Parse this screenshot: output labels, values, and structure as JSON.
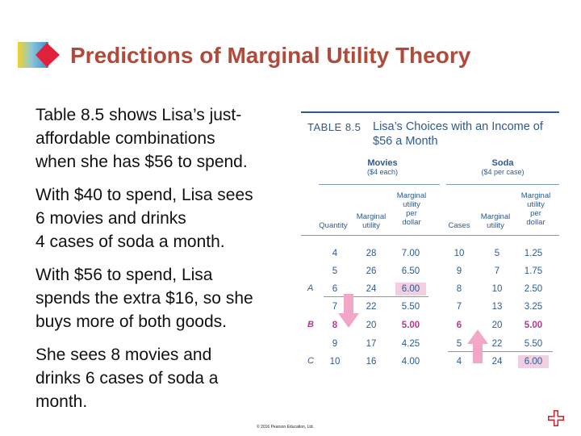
{
  "slide": {
    "title": "Predictions of Marginal Utility Theory",
    "bullets": [
      "Table 8.5 shows Lisa’s just-\naffordable combinations\nwhen she has $56 to spend.",
      "With $40 to spend, Lisa sees\n6 movies and drinks\n4 cases of soda a month.",
      "With $56 to spend, Lisa\nspends the extra $16, so she\nbuys more of both goods.",
      "She sees 8 movies and\ndrinks 6 cases of soda a\nmonth."
    ],
    "copyright": "© 2016 Pearson Education, Ltd.",
    "logo_icon": "diamond-logo-icon",
    "corner_icon": "plus-cross-icon",
    "colors": {
      "title": "#b04a3a",
      "table_text": "#2f5a8e",
      "highlight": "#f1cfe0",
      "accent": "#b23a8e",
      "arrow": "#f2a7c8"
    }
  },
  "table": {
    "number": "TABLE 8.5",
    "caption": "Lisa’s Choices with an Income of $56 a Month",
    "movies_group": {
      "title": "Movies",
      "subtitle": "($4 each)"
    },
    "soda_group": {
      "title": "Soda",
      "subtitle": "($4 per case)"
    },
    "headers": {
      "quantity": "Quantity",
      "movies_mu": "Marginal\nutility",
      "movies_mupd": "Marginal\nutility\nper\ndollar",
      "cases": "Cases",
      "soda_mu": "Marginal\nutility",
      "soda_mupd": "Marginal\nutility\nper\ndollar"
    },
    "rows": [
      {
        "label": "",
        "q": "4",
        "mu": "28",
        "mupd": "7.00",
        "c": "10",
        "smu": "5",
        "smupd": "1.25"
      },
      {
        "label": "",
        "q": "5",
        "mu": "26",
        "mupd": "6.50",
        "c": "9",
        "smu": "7",
        "smupd": "1.75"
      },
      {
        "label": "A",
        "q": "6",
        "mu": "24",
        "mupd": "6.00",
        "c": "8",
        "smu": "10",
        "smupd": "2.50"
      },
      {
        "label": "",
        "q": "7",
        "mu": "22",
        "mupd": "5.50",
        "c": "7",
        "smu": "13",
        "smupd": "3.25"
      },
      {
        "label": "B",
        "q": "8",
        "mu": "20",
        "mupd": "5.00",
        "c": "6",
        "smu": "20",
        "smupd": "5.00"
      },
      {
        "label": "",
        "q": "9",
        "mu": "17",
        "mupd": "4.25",
        "c": "5",
        "smu": "22",
        "smupd": "5.50"
      },
      {
        "label": "C",
        "q": "10",
        "mu": "16",
        "mupd": "4.00",
        "c": "4",
        "smu": "24",
        "smupd": "6.00"
      }
    ]
  }
}
